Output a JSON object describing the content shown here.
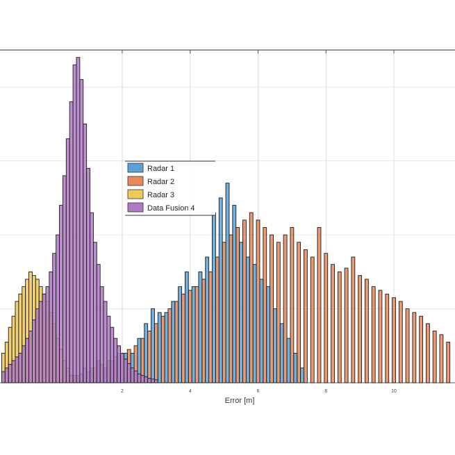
{
  "chart_data": {
    "type": "bar",
    "title": "",
    "xlabel": "Error [m]",
    "ylabel": "",
    "xlim": [
      -1.6,
      11.8
    ],
    "ylim": [
      0,
      450
    ],
    "grid": true,
    "legend_placement": "center",
    "x_ticks": [
      2,
      4,
      6,
      8,
      10
    ],
    "x_tick_labels": [
      "2",
      "4",
      "6",
      "8",
      "10"
    ],
    "bin_width": 0.1,
    "series": [
      {
        "name": "Radar 1",
        "color": "#5aa2d6",
        "x": [
          0.3,
          0.5,
          0.7,
          0.9,
          1.1,
          1.3,
          1.5,
          1.7,
          1.9,
          2.1,
          2.3,
          2.5,
          2.7,
          2.9,
          3.1,
          3.3,
          3.5,
          3.7,
          3.9,
          4.1,
          4.3,
          4.5,
          4.7,
          4.9,
          5.1,
          5.3,
          5.5,
          5.7,
          5.9,
          6.1,
          6.3,
          6.5,
          6.7,
          6.9,
          7.1,
          7.3
        ],
        "values": [
          0,
          10,
          10,
          20,
          20,
          30,
          20,
          30,
          40,
          40,
          40,
          60,
          80,
          100,
          95,
          95,
          110,
          130,
          150,
          130,
          150,
          170,
          230,
          250,
          270,
          240,
          190,
          170,
          160,
          140,
          130,
          100,
          80,
          60,
          40,
          20
        ]
      },
      {
        "name": "Radar 2",
        "color": "#e8895a",
        "x": [
          0.2,
          0.4,
          0.6,
          0.8,
          1.0,
          1.2,
          1.4,
          1.6,
          1.8,
          2.0,
          2.2,
          2.4,
          2.6,
          2.8,
          3.0,
          3.2,
          3.4,
          3.6,
          3.8,
          4.0,
          4.2,
          4.4,
          4.6,
          4.8,
          5.0,
          5.2,
          5.4,
          5.6,
          5.8,
          6.0,
          6.2,
          6.4,
          6.6,
          6.8,
          7.0,
          7.2,
          7.4,
          7.6,
          7.8,
          8.0,
          8.2,
          8.4,
          8.6,
          8.8,
          9.0,
          9.2,
          9.4,
          9.6,
          9.8,
          10.0,
          10.2,
          10.4,
          10.6,
          10.8,
          11.0,
          11.2,
          11.4,
          11.6
        ],
        "values": [
          5,
          8,
          10,
          12,
          15,
          20,
          25,
          30,
          35,
          40,
          45,
          50,
          60,
          70,
          80,
          90,
          100,
          110,
          120,
          125,
          130,
          140,
          150,
          170,
          190,
          200,
          210,
          220,
          230,
          220,
          210,
          200,
          190,
          200,
          210,
          190,
          180,
          170,
          210,
          175,
          160,
          150,
          155,
          170,
          145,
          140,
          130,
          125,
          120,
          115,
          110,
          100,
          95,
          90,
          80,
          70,
          65,
          55
        ]
      },
      {
        "name": "Radar 3",
        "color": "#f0c95a",
        "x": [
          -1.5,
          -1.4,
          -1.3,
          -1.2,
          -1.1,
          -1.0,
          -0.9,
          -0.8,
          -0.7,
          -0.6,
          -0.5,
          -0.4,
          -0.3,
          -0.2,
          -0.1,
          0.0,
          0.1,
          0.2,
          0.3,
          0.4,
          0.5
        ],
        "values": [
          40,
          55,
          75,
          90,
          110,
          120,
          130,
          140,
          150,
          145,
          140,
          130,
          120,
          110,
          95,
          80,
          60,
          45,
          30,
          20,
          10
        ]
      },
      {
        "name": "Data Fusion 4",
        "color": "#b07ac6",
        "x": [
          -1.5,
          -1.4,
          -1.3,
          -1.2,
          -1.1,
          -1.0,
          -0.9,
          -0.8,
          -0.7,
          -0.6,
          -0.5,
          -0.4,
          -0.3,
          -0.2,
          -0.1,
          0.0,
          0.1,
          0.2,
          0.3,
          0.4,
          0.5,
          0.6,
          0.7,
          0.8,
          0.9,
          1.0,
          1.1,
          1.2,
          1.3,
          1.4,
          1.5,
          1.6,
          1.7,
          1.8,
          1.9,
          2.0,
          2.1,
          2.2,
          2.3,
          2.4,
          2.5,
          2.6,
          2.7,
          2.8,
          2.9,
          3.0
        ],
        "values": [
          15,
          20,
          25,
          30,
          35,
          40,
          50,
          60,
          70,
          85,
          100,
          110,
          120,
          130,
          150,
          175,
          200,
          240,
          280,
          330,
          380,
          430,
          440,
          410,
          350,
          290,
          230,
          190,
          160,
          130,
          110,
          90,
          75,
          60,
          50,
          40,
          32,
          26,
          20,
          16,
          12,
          10,
          8,
          6,
          5,
          4
        ]
      }
    ]
  }
}
